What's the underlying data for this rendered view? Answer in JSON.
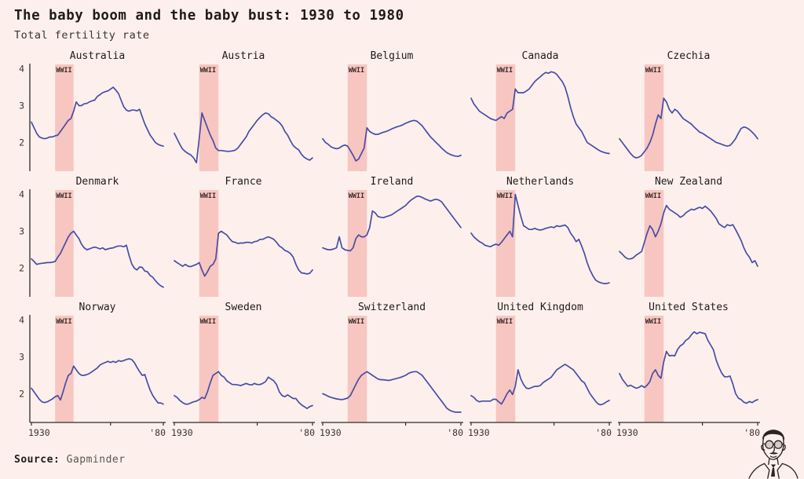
{
  "header": {
    "title": "The baby boom and the baby bust: 1930 to 1980",
    "subtitle": "Total fertility rate"
  },
  "colors": {
    "background": "#fdf0ec",
    "line": "#474da6",
    "band": "#f8c6c1",
    "axis": "#2e2a28",
    "text": "#1f1b19",
    "tick_text": "#3a3432",
    "muted": "#5c5550",
    "wwii_label": "#3d2f2c"
  },
  "chart_data": {
    "type": "line",
    "layout": "small-multiples 5x3, shared axes",
    "x": {
      "min": 1930,
      "max": 1980,
      "tick_years": [
        1930,
        1960,
        1980
      ],
      "tick_labels": [
        "1930",
        "",
        "'80"
      ]
    },
    "y": {
      "ticks": [
        2,
        3,
        4
      ],
      "range": [
        1.22,
        4.12
      ]
    },
    "annotation": {
      "label": "WWII",
      "band": [
        1939,
        1946
      ]
    },
    "years_start": 1930,
    "years_step": 1,
    "series": [
      {
        "name": "Australia",
        "values": [
          2.55,
          2.4,
          2.25,
          2.15,
          2.12,
          2.1,
          2.12,
          2.15,
          2.15,
          2.18,
          2.2,
          2.3,
          2.4,
          2.5,
          2.6,
          2.65,
          2.85,
          3.1,
          3.0,
          3.0,
          3.05,
          3.06,
          3.1,
          3.13,
          3.15,
          3.25,
          3.3,
          3.35,
          3.38,
          3.4,
          3.45,
          3.5,
          3.42,
          3.33,
          3.15,
          2.97,
          2.88,
          2.85,
          2.88,
          2.88,
          2.86,
          2.9,
          2.7,
          2.5,
          2.35,
          2.2,
          2.1,
          2.0,
          1.95,
          1.92,
          1.9
        ]
      },
      {
        "name": "Austria",
        "values": [
          2.25,
          2.1,
          1.95,
          1.82,
          1.75,
          1.7,
          1.66,
          1.58,
          1.45,
          2.1,
          2.8,
          2.6,
          2.4,
          2.2,
          2.05,
          1.85,
          1.78,
          1.78,
          1.77,
          1.76,
          1.76,
          1.77,
          1.79,
          1.85,
          1.95,
          2.05,
          2.15,
          2.3,
          2.4,
          2.5,
          2.6,
          2.68,
          2.75,
          2.8,
          2.78,
          2.7,
          2.66,
          2.6,
          2.54,
          2.45,
          2.3,
          2.2,
          2.05,
          1.92,
          1.85,
          1.8,
          1.68,
          1.6,
          1.55,
          1.52,
          1.58
        ]
      },
      {
        "name": "Belgium",
        "values": [
          2.1,
          2.0,
          1.95,
          1.88,
          1.85,
          1.83,
          1.85,
          1.9,
          1.93,
          1.9,
          1.78,
          1.65,
          1.5,
          1.55,
          1.7,
          1.85,
          2.4,
          2.3,
          2.25,
          2.22,
          2.22,
          2.25,
          2.28,
          2.3,
          2.33,
          2.37,
          2.4,
          2.43,
          2.45,
          2.48,
          2.52,
          2.55,
          2.58,
          2.6,
          2.58,
          2.52,
          2.45,
          2.35,
          2.25,
          2.15,
          2.08,
          2.0,
          1.93,
          1.85,
          1.78,
          1.72,
          1.68,
          1.65,
          1.63,
          1.62,
          1.65
        ]
      },
      {
        "name": "Canada",
        "values": [
          3.2,
          3.05,
          2.95,
          2.85,
          2.8,
          2.75,
          2.7,
          2.65,
          2.62,
          2.6,
          2.65,
          2.7,
          2.65,
          2.8,
          2.85,
          2.9,
          3.45,
          3.35,
          3.35,
          3.35,
          3.4,
          3.45,
          3.55,
          3.65,
          3.72,
          3.78,
          3.85,
          3.9,
          3.88,
          3.92,
          3.9,
          3.85,
          3.75,
          3.65,
          3.5,
          3.25,
          2.95,
          2.7,
          2.5,
          2.4,
          2.3,
          2.15,
          2.0,
          1.95,
          1.9,
          1.85,
          1.8,
          1.76,
          1.73,
          1.71,
          1.7
        ]
      },
      {
        "name": "Czechia",
        "values": [
          2.1,
          2.0,
          1.9,
          1.8,
          1.7,
          1.62,
          1.58,
          1.6,
          1.65,
          1.75,
          1.85,
          2.0,
          2.2,
          2.5,
          2.75,
          2.65,
          3.2,
          3.1,
          2.9,
          2.8,
          2.9,
          2.85,
          2.75,
          2.65,
          2.6,
          2.55,
          2.5,
          2.42,
          2.35,
          2.28,
          2.25,
          2.2,
          2.15,
          2.1,
          2.05,
          2.0,
          1.98,
          1.95,
          1.92,
          1.9,
          1.92,
          2.0,
          2.1,
          2.25,
          2.38,
          2.42,
          2.4,
          2.35,
          2.28,
          2.2,
          2.1
        ]
      },
      {
        "name": "Denmark",
        "values": [
          2.25,
          2.18,
          2.1,
          2.12,
          2.13,
          2.14,
          2.15,
          2.15,
          2.16,
          2.18,
          2.3,
          2.4,
          2.55,
          2.7,
          2.85,
          2.95,
          3.0,
          2.9,
          2.8,
          2.65,
          2.55,
          2.5,
          2.52,
          2.55,
          2.57,
          2.55,
          2.52,
          2.55,
          2.5,
          2.52,
          2.54,
          2.55,
          2.58,
          2.6,
          2.6,
          2.58,
          2.62,
          2.35,
          2.12,
          2.0,
          1.95,
          2.03,
          2.02,
          1.92,
          1.9,
          1.8,
          1.75,
          1.66,
          1.58,
          1.52,
          1.48
        ]
      },
      {
        "name": "France",
        "values": [
          2.2,
          2.15,
          2.1,
          2.05,
          2.1,
          2.05,
          2.04,
          2.07,
          2.1,
          2.15,
          1.95,
          1.78,
          1.9,
          2.05,
          2.1,
          2.25,
          2.95,
          3.0,
          2.95,
          2.9,
          2.8,
          2.72,
          2.7,
          2.67,
          2.68,
          2.68,
          2.7,
          2.7,
          2.68,
          2.72,
          2.73,
          2.78,
          2.78,
          2.82,
          2.85,
          2.82,
          2.78,
          2.7,
          2.6,
          2.55,
          2.48,
          2.45,
          2.4,
          2.3,
          2.1,
          1.95,
          1.87,
          1.86,
          1.84,
          1.86,
          1.95
        ]
      },
      {
        "name": "Ireland",
        "values": [
          2.55,
          2.52,
          2.5,
          2.5,
          2.52,
          2.55,
          2.85,
          2.55,
          2.5,
          2.48,
          2.47,
          2.55,
          2.8,
          2.9,
          2.85,
          2.85,
          2.9,
          3.1,
          3.55,
          3.5,
          3.4,
          3.38,
          3.37,
          3.4,
          3.42,
          3.45,
          3.5,
          3.55,
          3.6,
          3.65,
          3.7,
          3.78,
          3.85,
          3.9,
          3.95,
          3.95,
          3.92,
          3.88,
          3.85,
          3.82,
          3.85,
          3.87,
          3.85,
          3.8,
          3.7,
          3.6,
          3.5,
          3.4,
          3.3,
          3.2,
          3.1
        ]
      },
      {
        "name": "Netherlands",
        "values": [
          2.95,
          2.85,
          2.78,
          2.72,
          2.68,
          2.62,
          2.6,
          2.58,
          2.62,
          2.65,
          2.62,
          2.7,
          2.8,
          2.9,
          3.0,
          2.85,
          4.0,
          3.7,
          3.4,
          3.15,
          3.1,
          3.05,
          3.05,
          3.08,
          3.05,
          3.03,
          3.05,
          3.08,
          3.1,
          3.12,
          3.1,
          3.15,
          3.13,
          3.15,
          3.17,
          3.1,
          2.95,
          2.85,
          2.72,
          2.78,
          2.6,
          2.4,
          2.15,
          1.95,
          1.8,
          1.68,
          1.63,
          1.6,
          1.58,
          1.58,
          1.6
        ]
      },
      {
        "name": "New Zealand",
        "values": [
          2.45,
          2.38,
          2.3,
          2.25,
          2.25,
          2.28,
          2.35,
          2.4,
          2.45,
          2.7,
          2.95,
          3.15,
          3.05,
          2.85,
          3.0,
          3.2,
          3.5,
          3.7,
          3.6,
          3.55,
          3.5,
          3.45,
          3.38,
          3.42,
          3.5,
          3.55,
          3.6,
          3.58,
          3.62,
          3.65,
          3.62,
          3.68,
          3.62,
          3.55,
          3.45,
          3.35,
          3.2,
          3.15,
          3.1,
          3.18,
          3.15,
          3.18,
          3.05,
          2.9,
          2.75,
          2.55,
          2.4,
          2.3,
          2.15,
          2.2,
          2.05
        ]
      },
      {
        "name": "Norway",
        "values": [
          2.15,
          2.05,
          1.95,
          1.85,
          1.78,
          1.76,
          1.78,
          1.82,
          1.86,
          1.92,
          1.95,
          1.83,
          2.05,
          2.3,
          2.5,
          2.55,
          2.75,
          2.65,
          2.55,
          2.5,
          2.5,
          2.52,
          2.55,
          2.6,
          2.65,
          2.7,
          2.78,
          2.82,
          2.85,
          2.88,
          2.85,
          2.88,
          2.85,
          2.9,
          2.88,
          2.9,
          2.93,
          2.95,
          2.93,
          2.85,
          2.72,
          2.6,
          2.5,
          2.52,
          2.3,
          2.1,
          1.95,
          1.85,
          1.75,
          1.75,
          1.72
        ]
      },
      {
        "name": "Sweden",
        "values": [
          1.95,
          1.9,
          1.82,
          1.76,
          1.72,
          1.72,
          1.75,
          1.78,
          1.8,
          1.84,
          1.9,
          1.87,
          2.05,
          2.3,
          2.5,
          2.55,
          2.6,
          2.5,
          2.45,
          2.35,
          2.3,
          2.25,
          2.25,
          2.24,
          2.22,
          2.25,
          2.28,
          2.25,
          2.24,
          2.28,
          2.25,
          2.25,
          2.28,
          2.33,
          2.45,
          2.4,
          2.35,
          2.25,
          2.05,
          1.95,
          1.92,
          1.97,
          1.92,
          1.87,
          1.87,
          1.77,
          1.7,
          1.65,
          1.6,
          1.65,
          1.68
        ]
      },
      {
        "name": "Switzerland",
        "values": [
          2.0,
          1.97,
          1.93,
          1.9,
          1.88,
          1.86,
          1.85,
          1.84,
          1.86,
          1.88,
          1.95,
          2.1,
          2.25,
          2.4,
          2.5,
          2.55,
          2.6,
          2.55,
          2.5,
          2.45,
          2.4,
          2.38,
          2.38,
          2.37,
          2.36,
          2.38,
          2.4,
          2.42,
          2.44,
          2.47,
          2.5,
          2.55,
          2.58,
          2.6,
          2.6,
          2.55,
          2.5,
          2.4,
          2.3,
          2.2,
          2.1,
          2.0,
          1.9,
          1.8,
          1.7,
          1.6,
          1.55,
          1.52,
          1.5,
          1.5,
          1.5
        ]
      },
      {
        "name": "United Kingdom",
        "values": [
          1.95,
          1.9,
          1.82,
          1.78,
          1.8,
          1.8,
          1.8,
          1.8,
          1.85,
          1.85,
          1.78,
          1.72,
          1.85,
          2.0,
          2.1,
          1.98,
          2.2,
          2.65,
          2.4,
          2.25,
          2.15,
          2.14,
          2.17,
          2.2,
          2.2,
          2.22,
          2.3,
          2.35,
          2.4,
          2.45,
          2.55,
          2.65,
          2.7,
          2.75,
          2.8,
          2.75,
          2.7,
          2.65,
          2.55,
          2.45,
          2.35,
          2.3,
          2.15,
          2.0,
          1.9,
          1.8,
          1.72,
          1.7,
          1.73,
          1.78,
          1.82
        ]
      },
      {
        "name": "United States",
        "values": [
          2.55,
          2.4,
          2.3,
          2.2,
          2.23,
          2.19,
          2.15,
          2.17,
          2.22,
          2.17,
          2.23,
          2.33,
          2.55,
          2.65,
          2.5,
          2.42,
          2.86,
          3.15,
          3.03,
          3.04,
          3.03,
          3.2,
          3.3,
          3.35,
          3.45,
          3.5,
          3.6,
          3.68,
          3.63,
          3.67,
          3.65,
          3.63,
          3.45,
          3.32,
          3.19,
          2.91,
          2.72,
          2.56,
          2.46,
          2.46,
          2.48,
          2.27,
          2.01,
          1.88,
          1.84,
          1.77,
          1.74,
          1.79,
          1.76,
          1.81,
          1.84
        ]
      }
    ]
  },
  "footer": {
    "source_label": "Source:",
    "source_value": "Gapminder"
  },
  "logo": {
    "name": "portrait-sketch"
  }
}
